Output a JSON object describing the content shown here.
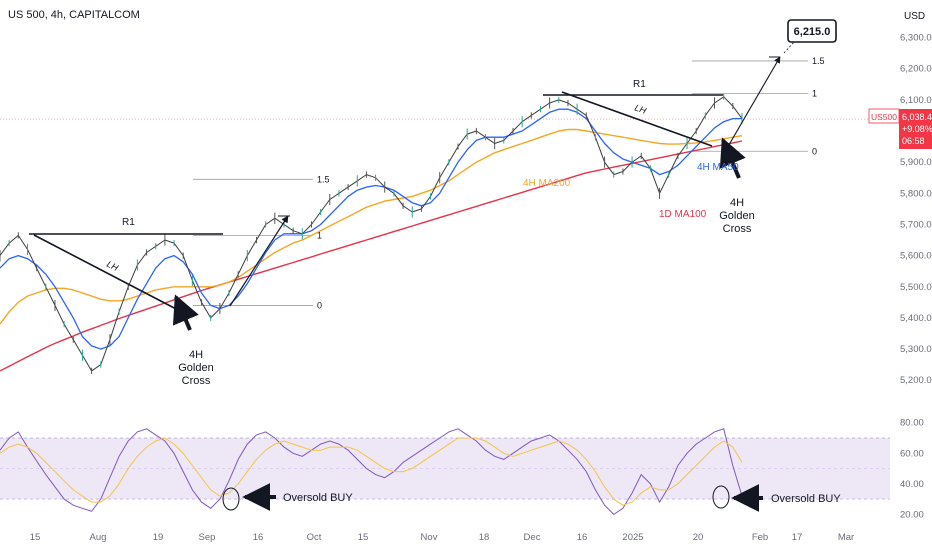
{
  "header": {
    "symbol_line": "US 500, 4h, CAPITALCOM",
    "currency": "USD"
  },
  "price_badge": {
    "ticker": "US500",
    "price": "6,038.4",
    "change": "+9.08%",
    "countdown": "06:58",
    "color": "#f23645"
  },
  "colors": {
    "price_line": "#3d3d3d",
    "ma50": "#2962ff",
    "ma200": "#f5a623",
    "ma100_1d": "#e3344a",
    "rsi": "#7e57c2",
    "rsi_ma": "#f5c542",
    "rsi_band": "#ede7f6",
    "annotation": "#131722"
  },
  "chart_data": [
    {
      "type": "line",
      "title": "",
      "ylabel": "",
      "yticks": [
        5200,
        5300,
        5400,
        5500,
        5600,
        5700,
        5800,
        5900,
        6000,
        6100,
        6200,
        6300
      ],
      "ytick_labels": [
        "5,200.0",
        "5,300.0",
        "5,400.0",
        "5,500.0",
        "5,600.0",
        "5,700.0",
        "5,800.0",
        "5,900.0",
        "6,000.0",
        "6,100.0",
        "6,200.0",
        "6,300.0"
      ],
      "ylim": [
        5130,
        6350
      ],
      "x_labels": [
        "15",
        "Aug",
        "19",
        "Sep",
        "16",
        "Oct",
        "15",
        "Nov",
        "18",
        "Dec",
        "16",
        "2025",
        "20",
        "Feb",
        "17",
        "Mar"
      ],
      "legend": "none",
      "grid": false,
      "series": [
        {
          "key": "price",
          "values": [
            5600,
            5640,
            5665,
            5620,
            5560,
            5500,
            5440,
            5380,
            5330,
            5280,
            5230,
            5250,
            5330,
            5420,
            5500,
            5570,
            5610,
            5630,
            5650,
            5640,
            5600,
            5520,
            5450,
            5400,
            5430,
            5480,
            5540,
            5600,
            5650,
            5700,
            5720,
            5700,
            5680,
            5670,
            5700,
            5740,
            5780,
            5800,
            5820,
            5840,
            5860,
            5850,
            5820,
            5800,
            5760,
            5740,
            5750,
            5790,
            5850,
            5900,
            5950,
            5990,
            6000,
            5980,
            5960,
            5970,
            6000,
            6030,
            6050,
            6070,
            6090,
            6100,
            6090,
            6070,
            6050,
            5980,
            5900,
            5860,
            5870,
            5900,
            5920,
            5880,
            5800,
            5860,
            5920,
            5960,
            6000,
            6050,
            6090,
            6110,
            6080,
            6040
          ]
        },
        {
          "key": "ma50",
          "name": "4H MA50",
          "values": [
            5560,
            5590,
            5600,
            5590,
            5570,
            5540,
            5500,
            5450,
            5400,
            5340,
            5310,
            5300,
            5310,
            5340,
            5400,
            5460,
            5510,
            5560,
            5590,
            5600,
            5580,
            5540,
            5480,
            5440,
            5430,
            5440,
            5470,
            5510,
            5560,
            5610,
            5650,
            5670,
            5670,
            5670,
            5680,
            5700,
            5730,
            5760,
            5790,
            5810,
            5820,
            5825,
            5820,
            5810,
            5790,
            5770,
            5760,
            5770,
            5800,
            5850,
            5900,
            5940,
            5970,
            5980,
            5980,
            5980,
            5990,
            6000,
            6020,
            6040,
            6060,
            6070,
            6070,
            6060,
            6040,
            6000,
            5960,
            5930,
            5910,
            5900,
            5890,
            5880,
            5860,
            5870,
            5890,
            5920,
            5950,
            5980,
            6010,
            6030,
            6040,
            6040
          ]
        },
        {
          "key": "ma200",
          "name": "4H MA200",
          "values": [
            5380,
            5420,
            5450,
            5470,
            5480,
            5490,
            5495,
            5495,
            5490,
            5480,
            5470,
            5460,
            5455,
            5455,
            5460,
            5470,
            5480,
            5490,
            5495,
            5500,
            5500,
            5500,
            5500,
            5500,
            5505,
            5515,
            5530,
            5550,
            5570,
            5590,
            5610,
            5625,
            5640,
            5650,
            5665,
            5680,
            5695,
            5710,
            5725,
            5740,
            5755,
            5765,
            5775,
            5780,
            5785,
            5790,
            5800,
            5810,
            5825,
            5840,
            5860,
            5880,
            5900,
            5915,
            5930,
            5940,
            5950,
            5960,
            5970,
            5980,
            5990,
            6000,
            6005,
            6005,
            6000,
            5995,
            5990,
            5985,
            5980,
            5975,
            5970,
            5965,
            5960,
            5958,
            5958,
            5960,
            5962,
            5965,
            5970,
            5975,
            5980,
            5985
          ]
        },
        {
          "key": "ma100_1d",
          "name": "1D MA100",
          "values": [
            5230,
            5245,
            5260,
            5275,
            5290,
            5305,
            5318,
            5330,
            5342,
            5354,
            5365,
            5376,
            5387,
            5398,
            5408,
            5418,
            5428,
            5438,
            5448,
            5458,
            5468,
            5478,
            5488,
            5497,
            5506,
            5515,
            5524,
            5533,
            5542,
            5551,
            5560,
            5569,
            5578,
            5587,
            5596,
            5605,
            5614,
            5623,
            5632,
            5641,
            5650,
            5659,
            5668,
            5677,
            5686,
            5695,
            5704,
            5713,
            5722,
            5731,
            5740,
            5749,
            5758,
            5767,
            5776,
            5785,
            5794,
            5803,
            5812,
            5821,
            5830,
            5839,
            5848,
            5857,
            5866,
            5872,
            5878,
            5884,
            5890,
            5896,
            5902,
            5908,
            5914,
            5920,
            5926,
            5932,
            5938,
            5944,
            5950,
            5956,
            5962,
            5968
          ]
        }
      ]
    },
    {
      "type": "line",
      "title": "",
      "yticks": [
        20,
        40,
        60,
        80
      ],
      "ytick_labels": [
        "20.00",
        "40.00",
        "60.00",
        "80.00"
      ],
      "ylim": [
        15,
        87
      ],
      "band": [
        30,
        70
      ],
      "series": [
        {
          "key": "rsi",
          "values": [
            62,
            70,
            74,
            64,
            55,
            46,
            38,
            30,
            26,
            24,
            22,
            30,
            44,
            58,
            68,
            74,
            76,
            72,
            68,
            60,
            48,
            36,
            28,
            24,
            30,
            42,
            56,
            66,
            72,
            74,
            70,
            64,
            60,
            58,
            62,
            66,
            68,
            66,
            62,
            56,
            50,
            46,
            44,
            48,
            54,
            58,
            62,
            66,
            70,
            74,
            76,
            72,
            68,
            62,
            58,
            56,
            60,
            64,
            68,
            70,
            72,
            68,
            62,
            56,
            48,
            36,
            26,
            20,
            24,
            34,
            46,
            40,
            28,
            38,
            52,
            60,
            66,
            70,
            74,
            76,
            52,
            32
          ]
        },
        {
          "key": "rsi_ma",
          "values": [
            60,
            64,
            66,
            64,
            60,
            54,
            48,
            42,
            36,
            32,
            28,
            28,
            32,
            40,
            50,
            58,
            64,
            68,
            70,
            66,
            60,
            52,
            44,
            36,
            32,
            34,
            40,
            48,
            56,
            62,
            66,
            68,
            66,
            64,
            62,
            62,
            64,
            64,
            64,
            62,
            58,
            54,
            50,
            48,
            48,
            50,
            54,
            58,
            62,
            66,
            70,
            70,
            70,
            68,
            64,
            60,
            58,
            60,
            62,
            64,
            66,
            68,
            66,
            62,
            56,
            48,
            38,
            30,
            26,
            28,
            34,
            38,
            36,
            36,
            40,
            46,
            52,
            58,
            64,
            68,
            64,
            54
          ]
        }
      ]
    }
  ],
  "annotations": {
    "target_label": "6,215.0",
    "fib_1_5": "1.5",
    "fib_1": "1",
    "fib_0": "0",
    "r1": "R1",
    "lh": "LH",
    "golden_cross_left": [
      "4H",
      "Golden",
      "Cross"
    ],
    "golden_cross_right": [
      "4H",
      "Golden",
      "Cross"
    ],
    "ma200_label": "4H MA200",
    "ma100_label": "1D MA100",
    "ma50_label": "4H MA50",
    "oversold_label": "Oversold BUY"
  }
}
